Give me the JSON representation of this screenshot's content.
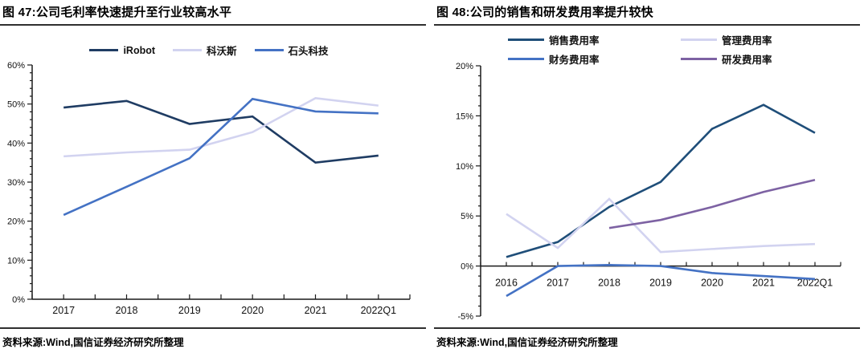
{
  "source_note": "资料来源:Wind,国信证券经济研究所整理",
  "chart_data": [
    {
      "type": "line",
      "figure_label": "图 47",
      "title": "图 47:公司毛利率快速提升至行业较高水平",
      "xlabel": "",
      "ylabel": "",
      "ytick_suffix": "%",
      "ylim": [
        0,
        60
      ],
      "ytick_step": 10,
      "yminor_step": 2,
      "grid": false,
      "legend_position": "top",
      "categories": [
        "2017",
        "2018",
        "2019",
        "2020",
        "2021",
        "2022Q1"
      ],
      "series": [
        {
          "name": "iRobot",
          "color": "#1F3C63",
          "values": [
            49.1,
            50.8,
            44.9,
            46.8,
            35.0,
            36.8
          ]
        },
        {
          "name": "科沃斯",
          "color": "#D2D3F0",
          "values": [
            36.6,
            37.6,
            38.3,
            42.8,
            51.5,
            49.6
          ]
        },
        {
          "name": "石头科技",
          "color": "#4472C4",
          "values": [
            21.6,
            28.8,
            36.1,
            51.3,
            48.1,
            47.6
          ]
        }
      ],
      "source": "资料来源:Wind,国信证券经济研究所整理"
    },
    {
      "type": "line",
      "figure_label": "图 48",
      "title": "图 48:公司的销售和研发费用率提升较快",
      "xlabel": "",
      "ylabel": "",
      "ytick_suffix": "%",
      "ylim": [
        -5,
        20
      ],
      "ytick_step": 5,
      "yminor_step": 1,
      "grid": false,
      "legend_position": "top",
      "categories": [
        "2016",
        "2017",
        "2018",
        "2019",
        "2020",
        "2021",
        "2022Q1"
      ],
      "series": [
        {
          "name": "销售费用率",
          "color": "#1F4E79",
          "values": [
            0.9,
            2.4,
            5.9,
            8.4,
            13.7,
            16.1,
            13.3
          ]
        },
        {
          "name": "管理费用率",
          "color": "#D2D3F0",
          "values": [
            5.2,
            1.8,
            6.7,
            1.4,
            1.7,
            2.0,
            2.2
          ]
        },
        {
          "name": "财务费用率",
          "color": "#4472C4",
          "values": [
            -3.0,
            0.0,
            0.1,
            0.0,
            -0.7,
            -1.0,
            -1.3
          ]
        },
        {
          "name": "研发费用率",
          "color": "#7D62A3",
          "values": [
            null,
            null,
            3.8,
            4.6,
            5.9,
            7.4,
            8.6
          ]
        }
      ],
      "source": "资料来源:Wind,国信证券经济研究所整理"
    }
  ]
}
